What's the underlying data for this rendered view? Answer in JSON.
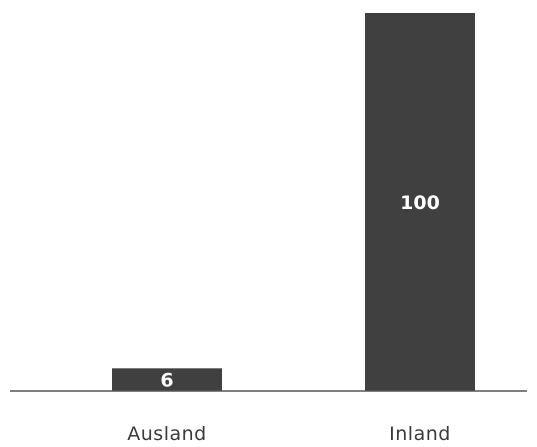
{
  "chart_data": {
    "type": "bar",
    "categories": [
      "Ausland",
      "Inland"
    ],
    "values": [
      6,
      100
    ],
    "data_labels": [
      "6",
      "100"
    ],
    "title": "",
    "xlabel": "",
    "ylabel": "",
    "ylim": [
      0,
      100
    ],
    "grid": false,
    "legend": "none",
    "colors": {
      "bar": "#404040",
      "bar_label": "#ffffff",
      "axis": "#555555",
      "category_label": "#3a3a3a"
    }
  }
}
